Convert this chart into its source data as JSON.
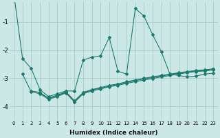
{
  "xlabel": "Humidex (Indice chaleur)",
  "bg_color": "#cce8e6",
  "line_color": "#1e7a6e",
  "grid_color": "#aacfcc",
  "xlim": [
    -0.5,
    23.5
  ],
  "ylim": [
    -4.5,
    -0.3
  ],
  "yticks": [
    -4,
    -3,
    -2,
    -1
  ],
  "xticks": [
    0,
    1,
    2,
    3,
    4,
    5,
    6,
    7,
    8,
    9,
    10,
    11,
    12,
    13,
    14,
    15,
    16,
    17,
    18,
    19,
    20,
    21,
    22,
    23
  ],
  "series_main": [
    0,
    -2.3,
    -2.65,
    -3.4,
    -3.65,
    -3.55,
    -3.45,
    -3.45,
    -2.35,
    -2.25,
    -2.2,
    -1.55,
    -2.75,
    -2.85,
    -0.52,
    -0.78,
    -1.45,
    -2.05,
    -2.85,
    -2.9,
    -2.95,
    -2.92,
    -2.85,
    -2.82
  ],
  "series_flat1": [
    null,
    null,
    -3.45,
    -3.5,
    -3.72,
    -3.62,
    -3.5,
    -3.82,
    -3.52,
    -3.42,
    -3.35,
    -3.28,
    -3.22,
    -3.15,
    -3.08,
    -3.02,
    -2.97,
    -2.92,
    -2.87,
    -2.82,
    -2.78,
    -2.74,
    -2.72,
    -2.68
  ],
  "series_flat2": [
    null,
    -2.85,
    -3.48,
    -3.55,
    -3.75,
    -3.65,
    -3.52,
    -3.85,
    -3.55,
    -3.45,
    -3.38,
    -3.3,
    -3.25,
    -3.18,
    -3.12,
    -3.06,
    -3.01,
    -2.95,
    -2.9,
    -2.85,
    -2.8,
    -2.76,
    -2.74,
    -2.7
  ],
  "series_flat3": [
    null,
    null,
    null,
    -3.52,
    -3.7,
    -3.6,
    -3.48,
    -3.8,
    -3.5,
    -3.4,
    -3.33,
    -3.25,
    -3.2,
    -3.12,
    -3.06,
    -3.0,
    -2.95,
    -2.9,
    -2.85,
    -2.8,
    -2.76,
    -2.72,
    -2.7,
    -2.66
  ]
}
